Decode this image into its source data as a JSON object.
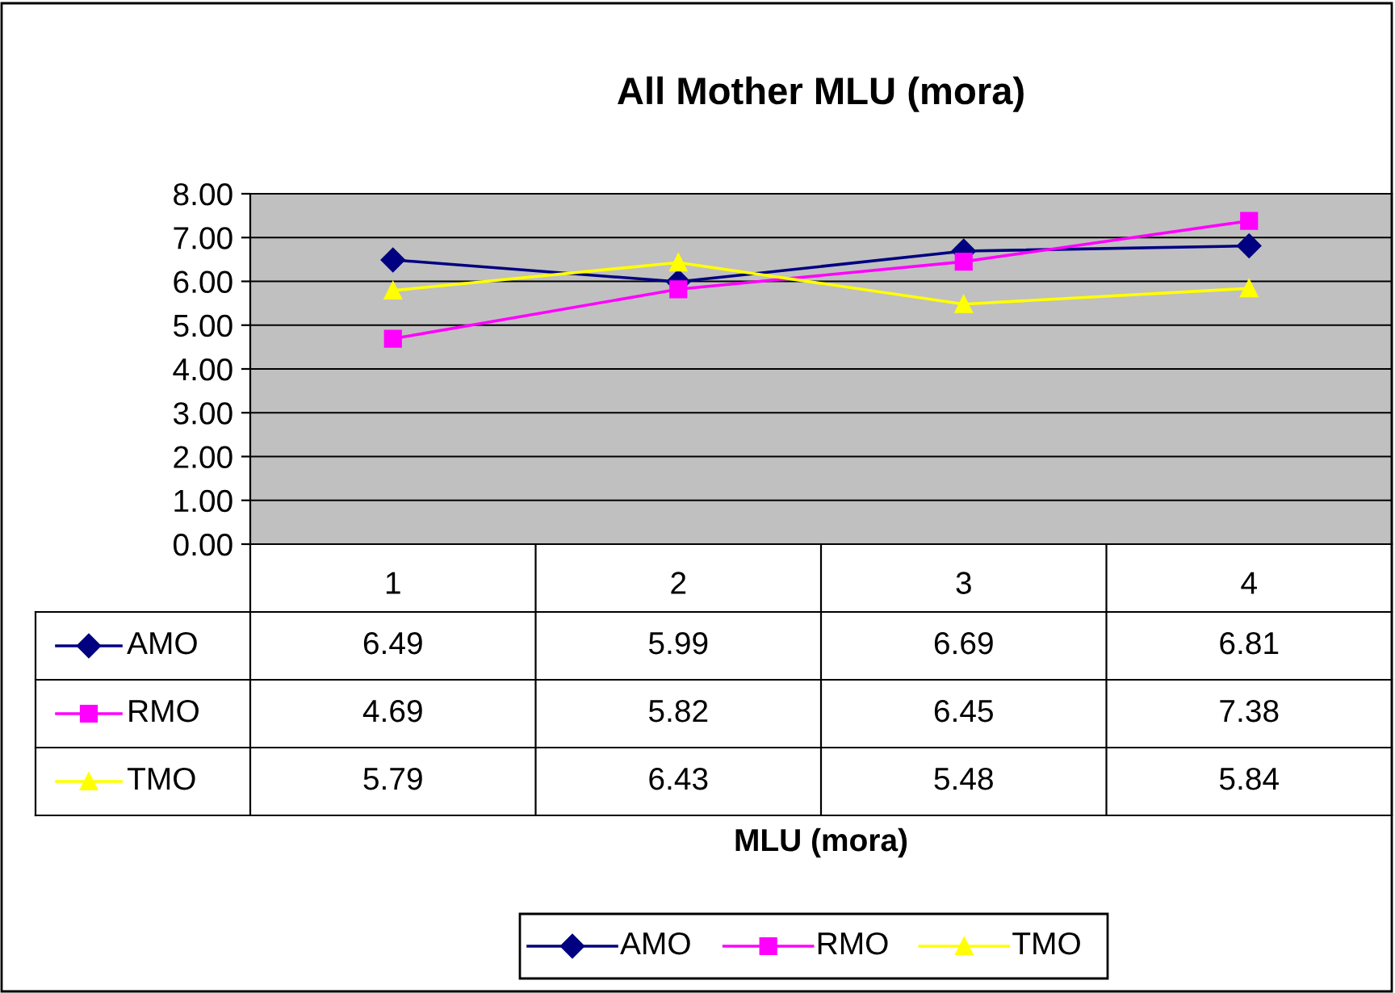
{
  "chart_data": {
    "type": "line",
    "title": "All Mother MLU (mora)",
    "annotations": [
      "MLU (mora)"
    ],
    "categories": [
      "1",
      "2",
      "3",
      "4"
    ],
    "series": [
      {
        "name": "AMO",
        "color": "#000080",
        "marker": "diamond",
        "values": [
          6.49,
          5.99,
          6.69,
          6.81
        ]
      },
      {
        "name": "RMO",
        "color": "#ff00ff",
        "marker": "square",
        "values": [
          4.69,
          5.82,
          6.45,
          7.38
        ]
      },
      {
        "name": "TMO",
        "color": "#ffff00",
        "marker": "triangle",
        "values": [
          5.79,
          6.43,
          5.48,
          5.84
        ]
      }
    ],
    "ylim": [
      0,
      8
    ],
    "yticks": [
      {
        "value": 0,
        "label": "0.00"
      },
      {
        "value": 1,
        "label": "1.00"
      },
      {
        "value": 2,
        "label": "2.00"
      },
      {
        "value": 3,
        "label": "3.00"
      },
      {
        "value": 4,
        "label": "4.00"
      },
      {
        "value": 5,
        "label": "5.00"
      },
      {
        "value": 6,
        "label": "6.00"
      },
      {
        "value": 7,
        "label": "7.00"
      },
      {
        "value": 8,
        "label": "8.00"
      }
    ],
    "grid": "y",
    "legend": "bottom",
    "data_labels": true,
    "line_style": "solid"
  }
}
